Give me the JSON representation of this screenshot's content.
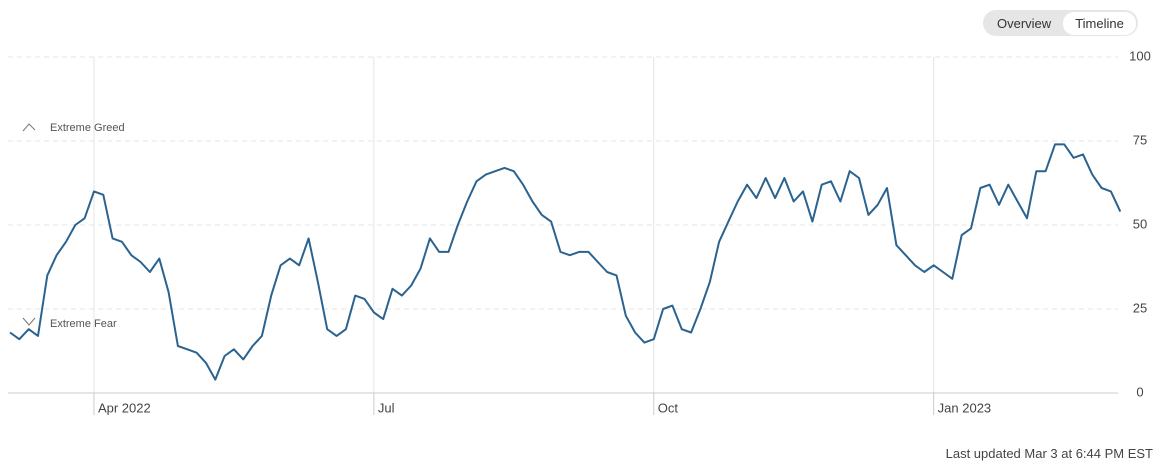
{
  "chart_data": {
    "type": "line",
    "color": "#2b6390",
    "grid": true,
    "ylim": [
      0,
      100
    ],
    "yticks": [
      0,
      25,
      50,
      75,
      100
    ],
    "annotations": [
      "Extreme Greed",
      "Extreme Fear"
    ],
    "categories": [
      null,
      null,
      null,
      null,
      null,
      null,
      null,
      null,
      null,
      "Apr 2022",
      null,
      null,
      null,
      null,
      null,
      null,
      null,
      null,
      null,
      null,
      null,
      null,
      null,
      null,
      null,
      null,
      null,
      null,
      null,
      null,
      null,
      null,
      null,
      null,
      null,
      null,
      null,
      null,
      null,
      "Jul",
      null,
      null,
      null,
      null,
      null,
      null,
      null,
      null,
      null,
      null,
      null,
      null,
      null,
      null,
      null,
      null,
      null,
      null,
      null,
      null,
      null,
      null,
      null,
      null,
      null,
      null,
      null,
      null,
      null,
      "Oct",
      null,
      null,
      null,
      null,
      null,
      null,
      null,
      null,
      null,
      null,
      null,
      null,
      null,
      null,
      null,
      null,
      null,
      null,
      null,
      null,
      null,
      null,
      null,
      null,
      null,
      null,
      null,
      null,
      null,
      "Jan 2023",
      null,
      null,
      null,
      null,
      null,
      null,
      null,
      null,
      null,
      null,
      null,
      null,
      null,
      null,
      null,
      null,
      null,
      null,
      null,
      null
    ],
    "values": [
      18,
      16,
      19,
      17,
      35,
      41,
      45,
      50,
      52,
      60,
      59,
      46,
      45,
      41,
      39,
      36,
      40,
      30,
      14,
      13,
      12,
      9,
      4,
      11,
      13,
      10,
      14,
      17,
      29,
      38,
      40,
      38,
      46,
      33,
      19,
      17,
      19,
      29,
      28,
      24,
      22,
      31,
      29,
      32,
      37,
      46,
      42,
      42,
      50,
      57,
      63,
      65,
      66,
      67,
      66,
      62,
      57,
      53,
      51,
      42,
      41,
      42,
      42,
      39,
      36,
      35,
      23,
      18,
      15,
      16,
      25,
      26,
      19,
      18,
      25,
      33,
      45,
      51,
      57,
      62,
      58,
      64,
      58,
      64,
      57,
      60,
      51,
      62,
      63,
      57,
      66,
      64,
      53,
      56,
      61,
      44,
      41,
      38,
      36,
      38,
      36,
      34,
      47,
      49,
      61,
      62,
      56,
      62,
      57,
      52,
      66,
      66,
      74,
      74,
      70,
      71,
      65,
      61,
      60,
      54
    ]
  },
  "controls": [
    "Overview",
    "Timeline"
  ],
  "footer": "Last updated Mar 3 at 6:44 PM EST"
}
